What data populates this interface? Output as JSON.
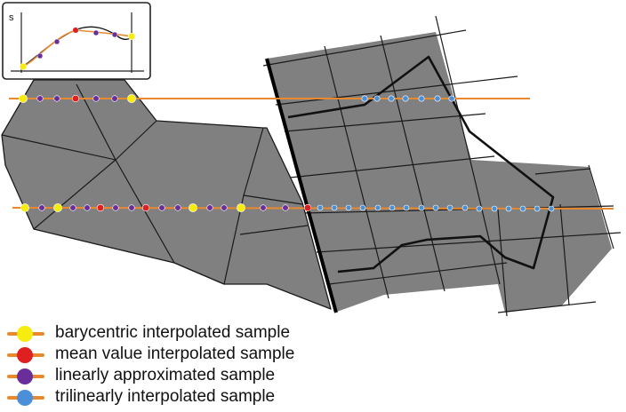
{
  "inset": {
    "axis_label": "s"
  },
  "colors": {
    "mesh_fill": "#808080",
    "mesh_stroke": "#1a1a1a",
    "sample_line": "#e8892f",
    "background": "#ffffff"
  },
  "legend": {
    "items": [
      {
        "id": "barycentric",
        "label": "barycentric interpolated sample",
        "color": "#f7ec0f"
      },
      {
        "id": "mean-value",
        "label": "mean value interpolated sample",
        "color": "#e02020"
      },
      {
        "id": "linear",
        "label": "linearly approximated sample",
        "color": "#6a2e9a"
      },
      {
        "id": "trilinear",
        "label": "trilinearly interpolated sample",
        "color": "#4a8fd8"
      }
    ]
  }
}
